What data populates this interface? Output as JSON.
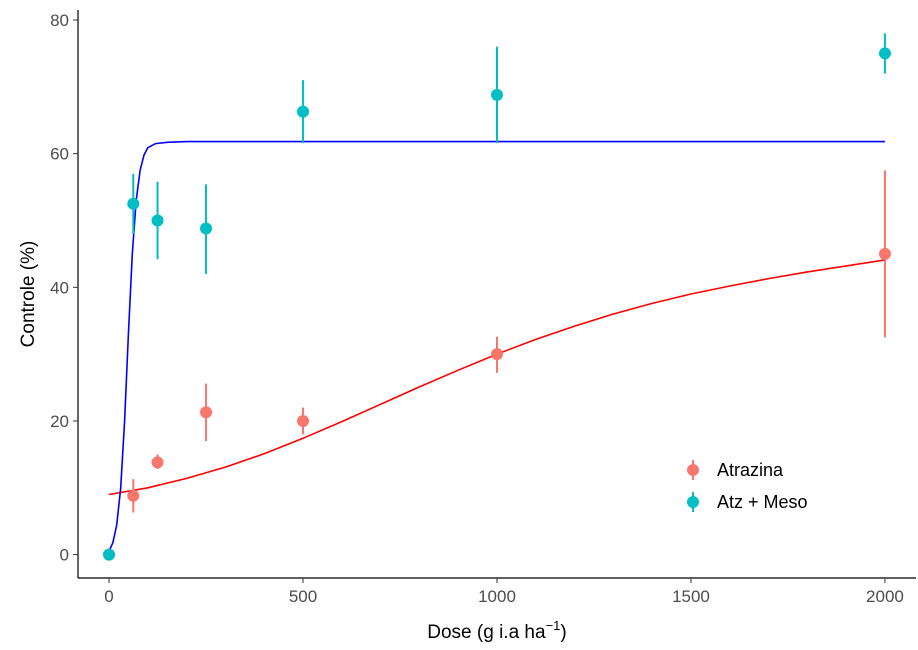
{
  "chart_data": {
    "type": "scatter",
    "title": "",
    "xlabel": "Dose (g i.a ha",
    "xlabel_superscript": "−1",
    "xlabel_suffix": ")",
    "ylabel": "Controle (%)",
    "xlim": [
      -80,
      2080
    ],
    "ylim": [
      -3.5,
      81.5
    ],
    "x_ticks": [
      0,
      500,
      1000,
      1500,
      2000
    ],
    "y_ticks": [
      0,
      20,
      40,
      60,
      80
    ],
    "grid": false,
    "legend_position": "bottom-right",
    "series": [
      {
        "name": "Atrazina",
        "color": "#F8766D",
        "curve_color": "#FF0000",
        "points": [
          {
            "x": 0,
            "y": 0,
            "err_low": 0,
            "err_high": 0
          },
          {
            "x": 62.5,
            "y": 8.8,
            "err_low": 6.3,
            "err_high": 11.3
          },
          {
            "x": 125,
            "y": 13.8,
            "err_low": 12.8,
            "err_high": 15.0
          },
          {
            "x": 250,
            "y": 21.3,
            "err_low": 17.0,
            "err_high": 25.6
          },
          {
            "x": 500,
            "y": 20.0,
            "err_low": 18.0,
            "err_high": 22.0
          },
          {
            "x": 1000,
            "y": 30.0,
            "err_low": 27.2,
            "err_high": 32.6
          },
          {
            "x": 2000,
            "y": 45.0,
            "err_low": 32.5,
            "err_high": 57.5
          }
        ],
        "fit": [
          [
            0,
            9.0
          ],
          [
            100,
            10.0
          ],
          [
            200,
            11.4
          ],
          [
            300,
            13.1
          ],
          [
            400,
            15.1
          ],
          [
            500,
            17.4
          ],
          [
            600,
            19.9
          ],
          [
            700,
            22.5
          ],
          [
            800,
            25.1
          ],
          [
            900,
            27.6
          ],
          [
            1000,
            30.0
          ],
          [
            1100,
            32.2
          ],
          [
            1200,
            34.2
          ],
          [
            1300,
            36.0
          ],
          [
            1400,
            37.6
          ],
          [
            1500,
            39.0
          ],
          [
            1600,
            40.2
          ],
          [
            1700,
            41.3
          ],
          [
            1800,
            42.3
          ],
          [
            1900,
            43.2
          ],
          [
            2000,
            44.1
          ]
        ]
      },
      {
        "name": "Atz + Meso",
        "color": "#00BFC4",
        "curve_color": "#0000FF",
        "points": [
          {
            "x": 0,
            "y": 0,
            "err_low": 0,
            "err_high": 0
          },
          {
            "x": 62.5,
            "y": 52.5,
            "err_low": 48.0,
            "err_high": 57.0
          },
          {
            "x": 125,
            "y": 50.0,
            "err_low": 44.2,
            "err_high": 55.8
          },
          {
            "x": 250,
            "y": 48.8,
            "err_low": 42.0,
            "err_high": 55.4
          },
          {
            "x": 500,
            "y": 66.3,
            "err_low": 61.6,
            "err_high": 71.0
          },
          {
            "x": 1000,
            "y": 68.8,
            "err_low": 61.6,
            "err_high": 76.0
          },
          {
            "x": 2000,
            "y": 75.0,
            "err_low": 72.0,
            "err_high": 78.0
          }
        ],
        "fit": [
          [
            0,
            0.5
          ],
          [
            10,
            1.8
          ],
          [
            20,
            4.5
          ],
          [
            30,
            10.0
          ],
          [
            40,
            20.0
          ],
          [
            50,
            33.0
          ],
          [
            60,
            45.0
          ],
          [
            70,
            53.0
          ],
          [
            80,
            57.5
          ],
          [
            90,
            59.8
          ],
          [
            100,
            60.9
          ],
          [
            120,
            61.5
          ],
          [
            150,
            61.7
          ],
          [
            200,
            61.8
          ],
          [
            500,
            61.8
          ],
          [
            1000,
            61.8
          ],
          [
            1500,
            61.8
          ],
          [
            2000,
            61.8
          ]
        ]
      }
    ]
  }
}
